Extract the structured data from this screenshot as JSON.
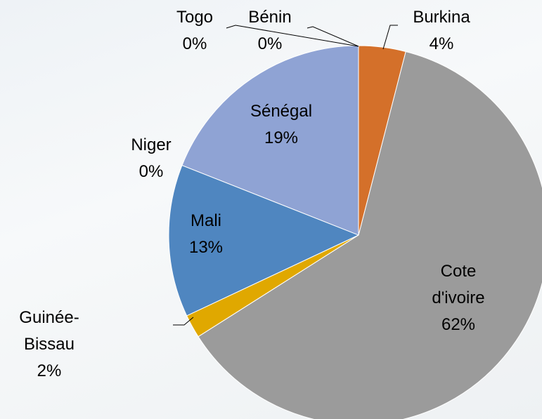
{
  "chart_data": {
    "type": "pie",
    "categories": [
      "Burkina",
      "Cote d'ivoire",
      "Guinée-Bissau",
      "Mali",
      "Niger",
      "Sénégal",
      "Togo",
      "Bénin"
    ],
    "values": [
      4,
      62,
      2,
      13,
      0,
      19,
      0,
      0
    ],
    "value_labels": [
      "4%",
      "62%",
      "2%",
      "13%",
      "0%",
      "19%",
      "0%",
      "0%"
    ],
    "colors": [
      "#d4702a",
      "#9b9b9b",
      "#e0a800",
      "#4f86c0",
      "#7f9fcf",
      "#8fa3d4",
      "#a6a6a6",
      "#5b7fb0"
    ]
  }
}
